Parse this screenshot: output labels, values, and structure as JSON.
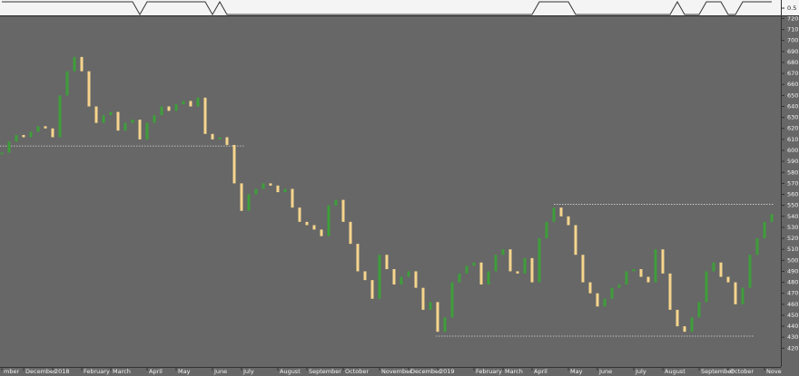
{
  "chart_data": {
    "type": "candlestick",
    "up_color": "#3e9e3a",
    "down_color": "#f6d58c",
    "values": [
      598,
      608,
      614,
      612,
      617,
      622,
      620,
      612,
      650,
      672,
      685,
      672,
      640,
      625,
      632,
      635,
      618,
      625,
      628,
      610,
      625,
      632,
      640,
      636,
      642,
      645,
      640,
      648,
      615,
      610,
      612,
      605,
      570,
      545,
      560,
      565,
      570,
      568,
      562,
      565,
      548,
      535,
      532,
      528,
      522,
      550,
      555,
      535,
      515,
      490,
      482,
      465,
      505,
      492,
      478,
      485,
      490,
      475,
      455,
      462,
      435,
      448,
      480,
      488,
      495,
      498,
      478,
      490,
      505,
      510,
      490,
      488,
      502,
      480,
      520,
      535,
      548,
      540,
      532,
      505,
      480,
      470,
      458,
      465,
      475,
      478,
      490,
      492,
      485,
      480,
      510,
      488,
      455,
      440,
      435,
      448,
      462,
      490,
      498,
      485,
      480,
      460,
      475,
      505,
      520,
      535,
      542
    ],
    "categories": [
      "mber",
      null,
      null,
      "December",
      null,
      null,
      null,
      "2018",
      null,
      null,
      null,
      "February",
      null,
      null,
      null,
      "March",
      null,
      null,
      null,
      null,
      "April",
      null,
      null,
      null,
      "May",
      null,
      null,
      null,
      null,
      "June",
      null,
      null,
      null,
      "July",
      null,
      null,
      null,
      null,
      "August",
      null,
      null,
      null,
      "September",
      null,
      null,
      null,
      null,
      "October",
      null,
      null,
      null,
      null,
      "November",
      null,
      null,
      null,
      "December",
      null,
      null,
      null,
      "2019",
      null,
      null,
      null,
      null,
      "February",
      null,
      null,
      null,
      "March",
      null,
      null,
      null,
      "April",
      null,
      null,
      null,
      null,
      "May",
      null,
      null,
      null,
      "June",
      null,
      null,
      null,
      null,
      "July",
      null,
      null,
      null,
      "August",
      null,
      null,
      null,
      null,
      "September",
      null,
      null,
      null,
      "October",
      null,
      null,
      null,
      null,
      "Nove",
      null
    ],
    "ylim": [
      403,
      722
    ],
    "yticks": [
      420,
      430,
      440,
      450,
      460,
      470,
      480,
      490,
      500,
      510,
      520,
      530,
      540,
      550,
      560,
      570,
      580,
      590,
      600,
      610,
      620,
      630,
      640,
      650,
      660,
      670,
      680,
      690,
      700,
      710,
      720
    ],
    "levels": [
      604,
      551,
      431
    ],
    "level_color": "#d8d8d8",
    "signal": [
      1,
      1,
      1,
      1,
      1,
      1,
      1,
      1,
      1,
      1,
      1,
      1,
      1,
      1,
      1,
      1,
      1,
      1,
      1,
      0,
      1,
      1,
      1,
      1,
      1,
      1,
      1,
      1,
      1,
      0,
      1,
      0,
      0,
      0,
      0,
      0,
      0,
      0,
      0,
      0,
      0,
      0,
      0,
      0,
      0,
      0,
      0,
      0,
      0,
      0,
      0,
      0,
      0,
      0,
      0,
      0,
      0,
      0,
      0,
      0,
      0,
      0,
      0,
      0,
      0,
      0,
      0,
      0,
      0,
      0,
      0,
      0,
      0,
      0,
      1,
      1,
      1,
      1,
      1,
      0,
      0,
      0,
      0,
      0,
      0,
      0,
      0,
      0,
      0,
      0,
      0,
      0,
      0,
      1,
      0,
      0,
      0,
      1,
      1,
      1,
      0,
      0,
      1,
      1,
      1,
      1,
      1
    ],
    "signal_ylim": [
      0,
      1
    ],
    "signal_yticks": [
      0.5
    ],
    "signal_color": "#333333"
  }
}
